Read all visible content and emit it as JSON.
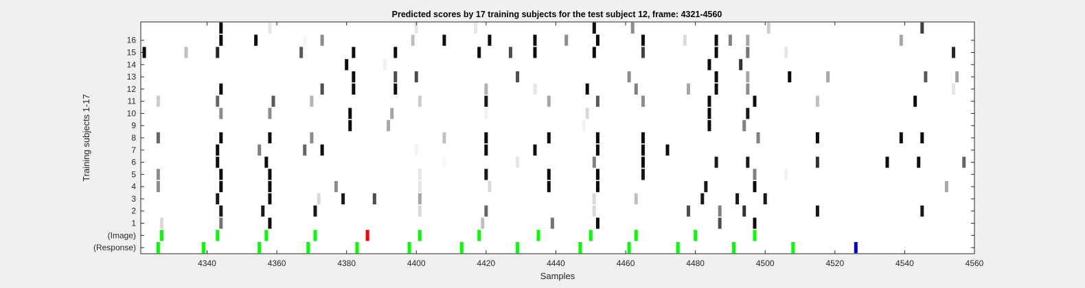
{
  "chart_data": {
    "type": "heatmap",
    "title": "Predicted scores by 17 training subjects for the test subject 12, frame: 4321-4560",
    "xlabel": "Samples",
    "ylabel": "Training subjects 1-17",
    "xlim": [
      4321,
      4560
    ],
    "xticks": [
      4340,
      4360,
      4380,
      4400,
      4420,
      4440,
      4460,
      4480,
      4500,
      4520,
      4540,
      4560
    ],
    "ytick_labels": [
      "(Response)",
      "(Image)",
      "1",
      "2",
      "3",
      "4",
      "5",
      "6",
      "7",
      "8",
      "9",
      "10",
      "11",
      "12",
      "13",
      "14",
      "15",
      "16"
    ],
    "colormap": "gray, white = 0, black = 1",
    "marker_colors": {
      "green": "#00ff00",
      "red": "#ff0000",
      "blue": "#0000cc"
    },
    "rows": [
      {
        "label": "(Response)",
        "cells": [
          [
            4326,
            "#00ff00"
          ],
          [
            4339,
            "#00ff00"
          ],
          [
            4355,
            "#00ff00"
          ],
          [
            4369,
            "#00ff00"
          ],
          [
            4383,
            "#00ff00"
          ],
          [
            4398,
            "#00ff00"
          ],
          [
            4413,
            "#00ff00"
          ],
          [
            4429,
            "#00ff00"
          ],
          [
            4447,
            "#00ff00"
          ],
          [
            4461,
            "#00ff00"
          ],
          [
            4475,
            "#00ff00"
          ],
          [
            4491,
            "#00ff00"
          ],
          [
            4508,
            "#00ff00"
          ],
          [
            4526,
            "#0000cc"
          ]
        ]
      },
      {
        "label": "(Image)",
        "cells": [
          [
            4327,
            "#00ff00"
          ],
          [
            4343,
            "#00ff00"
          ],
          [
            4357,
            "#00ff00"
          ],
          [
            4371,
            "#00ff00"
          ],
          [
            4386,
            "#ff0000"
          ],
          [
            4401,
            "#00ff00"
          ],
          [
            4418,
            "#00ff00"
          ],
          [
            4435,
            "#00ff00"
          ],
          [
            4450,
            "#00ff00"
          ],
          [
            4463,
            "#00ff00"
          ],
          [
            4480,
            "#00ff00"
          ],
          [
            4497,
            "#00ff00"
          ]
        ]
      },
      {
        "label": "1",
        "cells": [
          [
            4327,
            0.15
          ],
          [
            4344,
            0.55
          ],
          [
            4358,
            0.95
          ],
          [
            4419,
            0.25
          ],
          [
            4439,
            0.55
          ],
          [
            4452,
            0.95
          ],
          [
            4487,
            0.7
          ],
          [
            4497,
            0.95
          ]
        ]
      },
      {
        "label": "2",
        "cells": [
          [
            4344,
            0.9
          ],
          [
            4356,
            0.9
          ],
          [
            4371,
            0.9
          ],
          [
            4401,
            0.15
          ],
          [
            4420,
            0.6
          ],
          [
            4451,
            0.15
          ],
          [
            4478,
            0.7
          ],
          [
            4487,
            0.5
          ],
          [
            4494,
            0.8
          ],
          [
            4515,
            0.9
          ],
          [
            4545,
            0.9
          ]
        ]
      },
      {
        "label": "3",
        "cells": [
          [
            4343,
            0.9
          ],
          [
            4358,
            0.95
          ],
          [
            4372,
            0.15
          ],
          [
            4379,
            0.9
          ],
          [
            4388,
            0.7
          ],
          [
            4401,
            0.35
          ],
          [
            4451,
            0.15
          ],
          [
            4463,
            0.25
          ],
          [
            4482,
            0.9
          ],
          [
            4492,
            0.9
          ],
          [
            4500,
            0.9
          ]
        ]
      },
      {
        "label": "4",
        "cells": [
          [
            4326,
            0.45
          ],
          [
            4344,
            0.95
          ],
          [
            4358,
            0.95
          ],
          [
            4377,
            0.45
          ],
          [
            4401,
            0.1
          ],
          [
            4421,
            0.15
          ],
          [
            4438,
            0.95
          ],
          [
            4452,
            0.95
          ],
          [
            4483,
            0.9
          ],
          [
            4497,
            0.95
          ],
          [
            4552,
            0.35
          ]
        ]
      },
      {
        "label": "5",
        "cells": [
          [
            4326,
            0.45
          ],
          [
            4344,
            0.95
          ],
          [
            4358,
            0.95
          ],
          [
            4401,
            0.1
          ],
          [
            4420,
            0.9
          ],
          [
            4438,
            0.95
          ],
          [
            4452,
            0.95
          ],
          [
            4465,
            0.9
          ],
          [
            4497,
            0.5
          ],
          [
            4506,
            0.05
          ]
        ]
      },
      {
        "label": "6",
        "cells": [
          [
            4343,
            0.95
          ],
          [
            4357,
            0.95
          ],
          [
            4408,
            0.03
          ],
          [
            4429,
            0.1
          ],
          [
            4451,
            0.5
          ],
          [
            4465,
            0.95
          ],
          [
            4486,
            0.9
          ],
          [
            4495,
            0.9
          ],
          [
            4515,
            0.8
          ],
          [
            4535,
            0.95
          ],
          [
            4544,
            0.95
          ],
          [
            4557,
            0.6
          ]
        ]
      },
      {
        "label": "7",
        "cells": [
          [
            4343,
            0.95
          ],
          [
            4355,
            0.5
          ],
          [
            4368,
            0.6
          ],
          [
            4373,
            0.95
          ],
          [
            4400,
            0.05
          ],
          [
            4420,
            0.95
          ],
          [
            4434,
            0.95
          ],
          [
            4452,
            0.95
          ],
          [
            4465,
            0.95
          ],
          [
            4472,
            0.95
          ]
        ]
      },
      {
        "label": "8",
        "cells": [
          [
            4326,
            0.6
          ],
          [
            4344,
            0.95
          ],
          [
            4358,
            0.95
          ],
          [
            4370,
            0.45
          ],
          [
            4408,
            0.25
          ],
          [
            4420,
            0.95
          ],
          [
            4438,
            0.95
          ],
          [
            4452,
            0.95
          ],
          [
            4465,
            0.95
          ],
          [
            4498,
            0.5
          ],
          [
            4515,
            0.95
          ],
          [
            4539,
            0.95
          ],
          [
            4545,
            0.95
          ]
        ]
      },
      {
        "label": "9",
        "cells": [
          [
            4381,
            0.95
          ],
          [
            4392,
            0.35
          ],
          [
            4448,
            0.05
          ],
          [
            4484,
            0.95
          ],
          [
            4494,
            0.5
          ]
        ]
      },
      {
        "label": "10",
        "cells": [
          [
            4344,
            0.45
          ],
          [
            4358,
            0.45
          ],
          [
            4381,
            0.95
          ],
          [
            4393,
            0.35
          ],
          [
            4420,
            0.05
          ],
          [
            4449,
            0.15
          ],
          [
            4484,
            0.95
          ],
          [
            4495,
            0.9
          ]
        ]
      },
      {
        "label": "11",
        "cells": [
          [
            4326,
            0.2
          ],
          [
            4343,
            0.6
          ],
          [
            4359,
            0.65
          ],
          [
            4370,
            0.3
          ],
          [
            4401,
            0.2
          ],
          [
            4420,
            0.9
          ],
          [
            4438,
            0.35
          ],
          [
            4452,
            0.65
          ],
          [
            4465,
            0.45
          ],
          [
            4484,
            0.95
          ],
          [
            4497,
            0.95
          ],
          [
            4515,
            0.25
          ],
          [
            4543,
            0.95
          ]
        ]
      },
      {
        "label": "12",
        "cells": [
          [
            4344,
            0.95
          ],
          [
            4373,
            0.7
          ],
          [
            4382,
            0.95
          ],
          [
            4394,
            0.95
          ],
          [
            4420,
            0.3
          ],
          [
            4434,
            0.1
          ],
          [
            4449,
            0.95
          ],
          [
            4463,
            0.5
          ],
          [
            4478,
            0.35
          ],
          [
            4486,
            0.95
          ],
          [
            4495,
            0.45
          ],
          [
            4554,
            0.1
          ]
        ]
      },
      {
        "label": "13",
        "cells": [
          [
            4382,
            0.95
          ],
          [
            4394,
            0.7
          ],
          [
            4400,
            0.7
          ],
          [
            4429,
            0.7
          ],
          [
            4461,
            0.45
          ],
          [
            4486,
            0.95
          ],
          [
            4495,
            0.35
          ],
          [
            4507,
            0.95
          ],
          [
            4518,
            0.35
          ],
          [
            4546,
            0.65
          ],
          [
            4555,
            0.35
          ]
        ]
      },
      {
        "label": "14",
        "cells": [
          [
            4380,
            0.95
          ],
          [
            4391,
            0.05
          ],
          [
            4484,
            0.95
          ],
          [
            4493,
            0.8
          ]
        ]
      },
      {
        "label": "15",
        "cells": [
          [
            4322,
            0.95
          ],
          [
            4334,
            0.25
          ],
          [
            4343,
            0.85
          ],
          [
            4367,
            0.65
          ],
          [
            4382,
            0.95
          ],
          [
            4394,
            0.95
          ],
          [
            4418,
            0.95
          ],
          [
            4427,
            0.7
          ],
          [
            4434,
            0.95
          ],
          [
            4451,
            0.95
          ],
          [
            4465,
            0.75
          ],
          [
            4486,
            0.95
          ],
          [
            4495,
            0.55
          ],
          [
            4506,
            0.1
          ],
          [
            4554,
            0.85
          ]
        ]
      },
      {
        "label": "16",
        "cells": [
          [
            4344,
            0.95
          ],
          [
            4354,
            0.95
          ],
          [
            4368,
            0.03
          ],
          [
            4373,
            0.45
          ],
          [
            4399,
            0.25
          ],
          [
            4408,
            0.95
          ],
          [
            4421,
            0.95
          ],
          [
            4434,
            0.95
          ],
          [
            4443,
            0.45
          ],
          [
            4452,
            0.95
          ],
          [
            4465,
            0.95
          ],
          [
            4477,
            0.15
          ],
          [
            4486,
            0.95
          ],
          [
            4490,
            0.5
          ],
          [
            4495,
            0.35
          ],
          [
            4539,
            0.35
          ]
        ]
      },
      {
        "label": "",
        "cells": [
          [
            4344,
            0.95
          ],
          [
            4358,
            0.1
          ],
          [
            4400,
            0.1
          ],
          [
            4417,
            0.1
          ],
          [
            4451,
            0.95
          ],
          [
            4462,
            0.45
          ],
          [
            4501,
            0.2
          ],
          [
            4545,
            0.75
          ]
        ]
      }
    ]
  }
}
